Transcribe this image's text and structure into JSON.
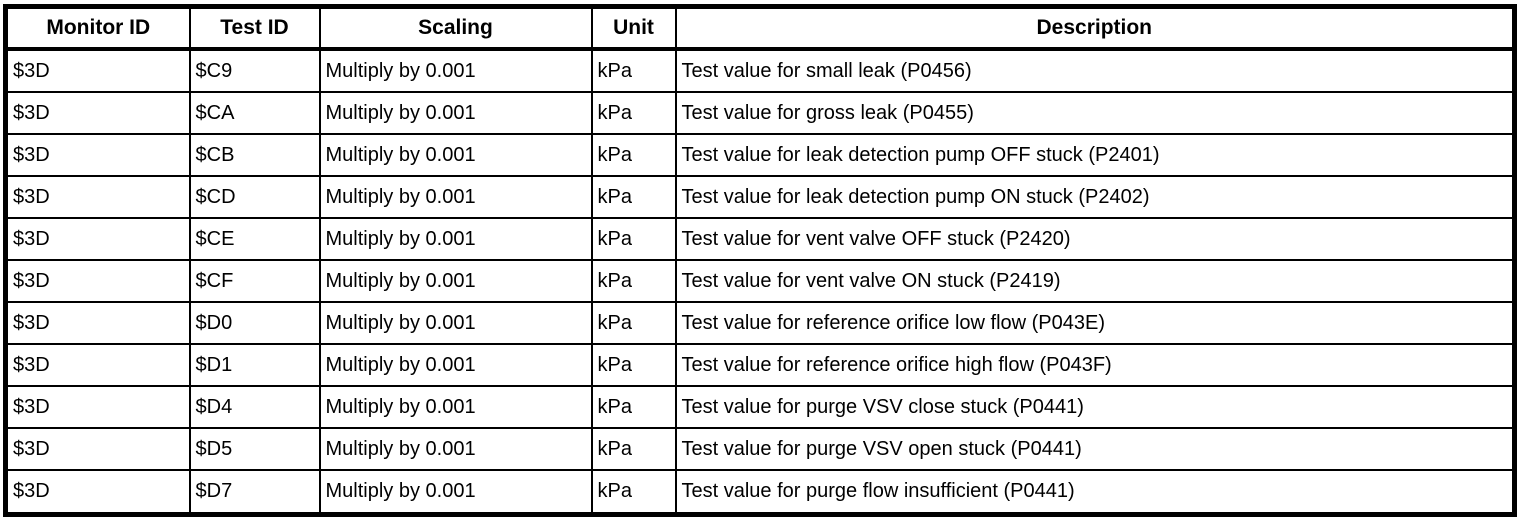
{
  "colors": {
    "border": "#000000",
    "background": "#ffffff",
    "text": "#000000"
  },
  "table": {
    "columns": [
      {
        "key": "monitor-id",
        "label": "Monitor ID"
      },
      {
        "key": "test-id",
        "label": "Test ID"
      },
      {
        "key": "scaling",
        "label": "Scaling"
      },
      {
        "key": "unit",
        "label": "Unit"
      },
      {
        "key": "description",
        "label": "Description"
      }
    ],
    "rows": [
      [
        "$3D",
        "$C9",
        "Multiply by 0.001",
        "kPa",
        "Test value for small leak (P0456)"
      ],
      [
        "$3D",
        "$CA",
        "Multiply by 0.001",
        "kPa",
        "Test value for gross leak (P0455)"
      ],
      [
        "$3D",
        "$CB",
        "Multiply by 0.001",
        "kPa",
        "Test value for leak detection pump OFF stuck (P2401)"
      ],
      [
        "$3D",
        "$CD",
        "Multiply by 0.001",
        "kPa",
        "Test value for leak detection pump ON stuck (P2402)"
      ],
      [
        "$3D",
        "$CE",
        "Multiply by 0.001",
        "kPa",
        "Test value for vent valve OFF stuck (P2420)"
      ],
      [
        "$3D",
        "$CF",
        "Multiply by 0.001",
        "kPa",
        "Test value for vent valve ON stuck (P2419)"
      ],
      [
        "$3D",
        "$D0",
        "Multiply by 0.001",
        "kPa",
        "Test value for reference orifice low flow (P043E)"
      ],
      [
        "$3D",
        "$D1",
        "Multiply by 0.001",
        "kPa",
        "Test value for reference orifice high flow (P043F)"
      ],
      [
        "$3D",
        "$D4",
        "Multiply by 0.001",
        "kPa",
        "Test value for purge VSV close stuck (P0441)"
      ],
      [
        "$3D",
        "$D5",
        "Multiply by 0.001",
        "kPa",
        "Test value for purge VSV open stuck (P0441)"
      ],
      [
        "$3D",
        "$D7",
        "Multiply by 0.001",
        "kPa",
        "Test value for purge flow insufficient (P0441)"
      ]
    ]
  }
}
